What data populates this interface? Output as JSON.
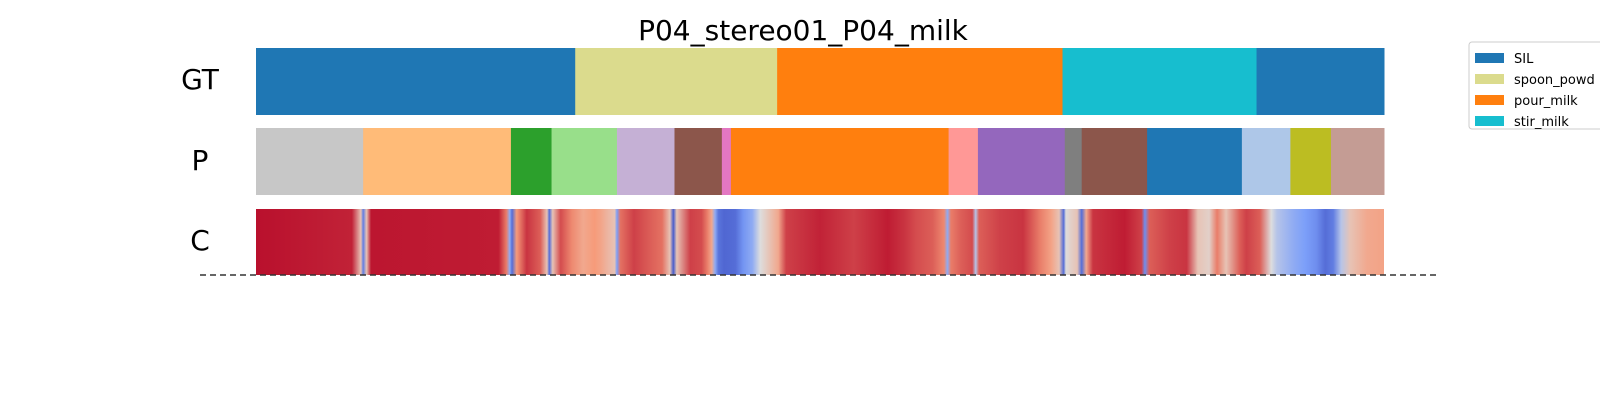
{
  "chart_data": {
    "type": "segmentation-timeline",
    "title": "P04_stereo01_P04_milk",
    "row_labels": [
      "GT",
      "P",
      "C"
    ],
    "x_range": [
      0,
      1
    ],
    "rows": {
      "GT": [
        {
          "start": 0.0,
          "end": 0.283,
          "label": "SIL",
          "color": "#1f77b4"
        },
        {
          "start": 0.283,
          "end": 0.462,
          "label": "spoon_powder",
          "color": "#dbdb8d"
        },
        {
          "start": 0.462,
          "end": 0.715,
          "label": "pour_milk",
          "color": "#ff7f0e"
        },
        {
          "start": 0.715,
          "end": 0.887,
          "label": "stir_milk",
          "color": "#17becf"
        },
        {
          "start": 0.887,
          "end": 1.0,
          "label": "SIL",
          "color": "#1f77b4"
        }
      ],
      "P": [
        {
          "start": 0.0,
          "end": 0.095,
          "color": "#c7c7c7"
        },
        {
          "start": 0.095,
          "end": 0.226,
          "color": "#ffbb78"
        },
        {
          "start": 0.226,
          "end": 0.262,
          "color": "#2ca02c"
        },
        {
          "start": 0.262,
          "end": 0.32,
          "color": "#98df8a"
        },
        {
          "start": 0.32,
          "end": 0.371,
          "color": "#c5b0d5"
        },
        {
          "start": 0.371,
          "end": 0.413,
          "color": "#8c564b"
        },
        {
          "start": 0.413,
          "end": 0.421,
          "color": "#e377c2"
        },
        {
          "start": 0.421,
          "end": 0.614,
          "color": "#ff7f0e"
        },
        {
          "start": 0.614,
          "end": 0.64,
          "color": "#ff9896"
        },
        {
          "start": 0.64,
          "end": 0.717,
          "color": "#9467bd"
        },
        {
          "start": 0.717,
          "end": 0.732,
          "color": "#7f7f7f"
        },
        {
          "start": 0.732,
          "end": 0.79,
          "color": "#8c564b"
        },
        {
          "start": 0.79,
          "end": 0.874,
          "color": "#1f77b4"
        },
        {
          "start": 0.874,
          "end": 0.917,
          "color": "#aec7e8"
        },
        {
          "start": 0.917,
          "end": 0.953,
          "color": "#bcbd22"
        },
        {
          "start": 0.953,
          "end": 1.0,
          "color": "#c49c94"
        }
      ],
      "C": {
        "colormap": "coolwarm",
        "values": [
          [
            0.0,
            0.98
          ],
          [
            0.085,
            0.95
          ],
          [
            0.093,
            0.6
          ],
          [
            0.095,
            0.15
          ],
          [
            0.098,
            0.6
          ],
          [
            0.102,
            0.97
          ],
          [
            0.215,
            0.96
          ],
          [
            0.222,
            0.8
          ],
          [
            0.225,
            0.3
          ],
          [
            0.227,
            0.1
          ],
          [
            0.231,
            0.75
          ],
          [
            0.24,
            0.92
          ],
          [
            0.252,
            0.85
          ],
          [
            0.258,
            0.6
          ],
          [
            0.26,
            0.1
          ],
          [
            0.263,
            0.6
          ],
          [
            0.27,
            0.88
          ],
          [
            0.28,
            0.78
          ],
          [
            0.29,
            0.7
          ],
          [
            0.3,
            0.75
          ],
          [
            0.305,
            0.72
          ],
          [
            0.312,
            0.65
          ],
          [
            0.318,
            0.6
          ],
          [
            0.32,
            0.25
          ],
          [
            0.323,
            0.82
          ],
          [
            0.335,
            0.9
          ],
          [
            0.35,
            0.85
          ],
          [
            0.36,
            0.82
          ],
          [
            0.367,
            0.6
          ],
          [
            0.37,
            0.05
          ],
          [
            0.373,
            0.6
          ],
          [
            0.385,
            0.9
          ],
          [
            0.395,
            0.88
          ],
          [
            0.4,
            0.8
          ],
          [
            0.404,
            0.7
          ],
          [
            0.407,
            0.3
          ],
          [
            0.41,
            0.12
          ],
          [
            0.415,
            0.08
          ],
          [
            0.425,
            0.1
          ],
          [
            0.432,
            0.22
          ],
          [
            0.44,
            0.3
          ],
          [
            0.447,
            0.5
          ],
          [
            0.455,
            0.6
          ],
          [
            0.463,
            0.7
          ],
          [
            0.47,
            0.9
          ],
          [
            0.5,
            0.95
          ],
          [
            0.53,
            0.9
          ],
          [
            0.56,
            0.96
          ],
          [
            0.575,
            0.92
          ],
          [
            0.585,
            0.88
          ],
          [
            0.6,
            0.85
          ],
          [
            0.61,
            0.78
          ],
          [
            0.613,
            0.3
          ],
          [
            0.616,
            0.8
          ],
          [
            0.625,
            0.85
          ],
          [
            0.635,
            0.88
          ],
          [
            0.638,
            0.4
          ],
          [
            0.641,
            0.85
          ],
          [
            0.66,
            0.9
          ],
          [
            0.68,
            0.92
          ],
          [
            0.695,
            0.8
          ],
          [
            0.705,
            0.72
          ],
          [
            0.712,
            0.6
          ],
          [
            0.716,
            0.1
          ],
          [
            0.718,
            0.5
          ],
          [
            0.722,
            0.55
          ],
          [
            0.728,
            0.6
          ],
          [
            0.732,
            0.1
          ],
          [
            0.736,
            0.7
          ],
          [
            0.742,
            0.92
          ],
          [
            0.77,
            0.96
          ],
          [
            0.785,
            0.9
          ],
          [
            0.788,
            0.2
          ],
          [
            0.792,
            0.85
          ],
          [
            0.81,
            0.9
          ],
          [
            0.825,
            0.92
          ],
          [
            0.835,
            0.6
          ],
          [
            0.845,
            0.55
          ],
          [
            0.852,
            0.8
          ],
          [
            0.86,
            0.6
          ],
          [
            0.872,
            0.85
          ],
          [
            0.878,
            0.9
          ],
          [
            0.89,
            0.85
          ],
          [
            0.9,
            0.5
          ],
          [
            0.905,
            0.4
          ],
          [
            0.912,
            0.35
          ],
          [
            0.92,
            0.3
          ],
          [
            0.93,
            0.25
          ],
          [
            0.94,
            0.2
          ],
          [
            0.948,
            0.1
          ],
          [
            0.955,
            0.15
          ],
          [
            0.962,
            0.4
          ],
          [
            0.97,
            0.6
          ],
          [
            0.985,
            0.7
          ],
          [
            1.0,
            0.72
          ]
        ]
      }
    },
    "legend": {
      "placement": "top-right",
      "entries": [
        {
          "label": "SIL",
          "color": "#1f77b4"
        },
        {
          "label": "spoon_powd",
          "color": "#dbdb8d"
        },
        {
          "label": "pour_milk",
          "color": "#ff7f0e"
        },
        {
          "label": "stir_milk",
          "color": "#17becf"
        }
      ]
    },
    "baseline": "dashed"
  }
}
